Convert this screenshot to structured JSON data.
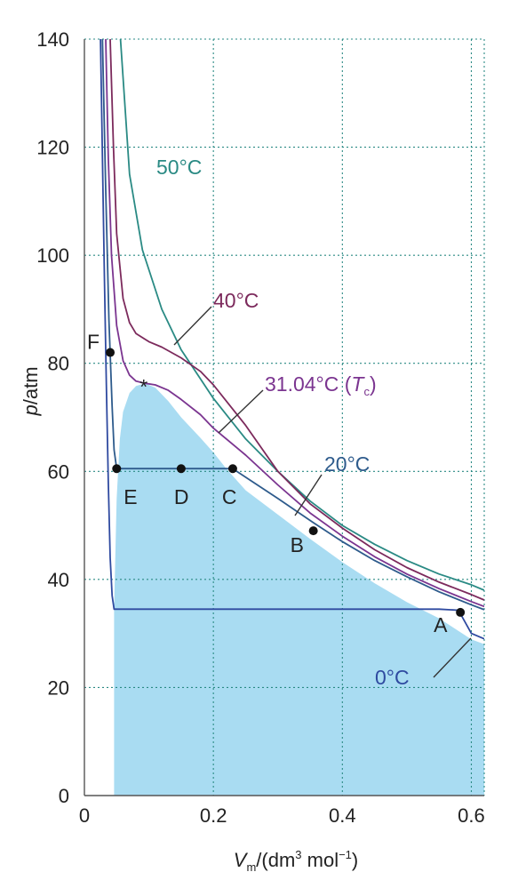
{
  "chart_data": {
    "type": "line",
    "xlabel_main": "V",
    "xlabel_sub": "m",
    "xlabel_units_pre": "/(dm",
    "xlabel_units_sup": "3",
    "xlabel_units_mid": " mol",
    "xlabel_units_sup2": "−1",
    "xlabel_units_post": ")",
    "ylabel_main": "p",
    "ylabel_units": "/atm",
    "xlim": [
      0,
      0.62
    ],
    "ylim": [
      0,
      140
    ],
    "x_ticks": [
      {
        "value": 0,
        "label": "0"
      },
      {
        "value": 0.2,
        "label": "0.2"
      },
      {
        "value": 0.4,
        "label": "0.4"
      },
      {
        "value": 0.6,
        "label": "0.6"
      }
    ],
    "y_ticks": [
      {
        "value": 0,
        "label": "0"
      },
      {
        "value": 20,
        "label": "20"
      },
      {
        "value": 40,
        "label": "40"
      },
      {
        "value": 60,
        "label": "60"
      },
      {
        "value": 80,
        "label": "80"
      },
      {
        "value": 100,
        "label": "100"
      },
      {
        "value": 120,
        "label": "120"
      },
      {
        "value": 140,
        "label": "140"
      }
    ],
    "grid": true,
    "series": [
      {
        "name": "50°C",
        "color": "#2a8a84",
        "x": [
          0.056,
          0.07,
          0.09,
          0.12,
          0.15,
          0.2,
          0.25,
          0.3,
          0.35,
          0.4,
          0.45,
          0.5,
          0.55,
          0.6,
          0.62
        ],
        "y": [
          140,
          115,
          101,
          90,
          82.5,
          73.5,
          66,
          60,
          54.5,
          50,
          46.5,
          43.5,
          41,
          39,
          38
        ]
      },
      {
        "name": "40°C",
        "color": "#7c2a5c",
        "x": [
          0.04,
          0.045,
          0.05,
          0.06,
          0.07,
          0.08,
          0.1,
          0.12,
          0.15,
          0.18,
          0.2,
          0.25,
          0.3,
          0.35,
          0.4,
          0.45,
          0.5,
          0.55,
          0.6,
          0.62
        ],
        "y": [
          140,
          120,
          104,
          92,
          87.5,
          85.5,
          84,
          83,
          81,
          78.5,
          76,
          68.5,
          60,
          54,
          49.5,
          45.5,
          42.2,
          39.5,
          37.2,
          36.2
        ]
      },
      {
        "name": "31.04°C",
        "color": "#7b3590",
        "x": [
          0.033,
          0.037,
          0.042,
          0.05,
          0.06,
          0.07,
          0.08,
          0.094,
          0.11,
          0.13,
          0.15,
          0.18,
          0.2,
          0.25,
          0.3,
          0.35,
          0.4,
          0.45,
          0.5,
          0.55,
          0.6,
          0.62
        ],
        "y": [
          140,
          118,
          100,
          87,
          80.5,
          77.8,
          76.7,
          76.3,
          76,
          75,
          73.3,
          70.5,
          68,
          63,
          57.5,
          52.3,
          48,
          44.2,
          41,
          38.3,
          35.9,
          35
        ]
      },
      {
        "name": "20°C",
        "color": "#2e5b8c",
        "x": [
          0.028,
          0.033,
          0.038,
          0.043,
          0.046,
          0.05,
          0.15,
          0.23,
          0.3,
          0.355,
          0.4,
          0.45,
          0.5,
          0.55,
          0.6,
          0.62
        ],
        "y": [
          140,
          112,
          88,
          72,
          64,
          60.5,
          60.5,
          60.5,
          55,
          50.5,
          47,
          43.5,
          40.5,
          37.7,
          35.3,
          34.4
        ]
      },
      {
        "name": "0°C",
        "color": "#2f4aa0",
        "x": [
          0.025,
          0.028,
          0.031,
          0.034,
          0.037,
          0.04,
          0.043,
          0.046,
          0.5,
          0.55,
          0.58,
          0.6,
          0.62
        ],
        "y": [
          140,
          118,
          96,
          76,
          58,
          44,
          37,
          34.5,
          34.5,
          34.5,
          34.3,
          30,
          29
        ]
      }
    ],
    "shaded_region": {
      "color": "#a9dcf2",
      "x": [
        0.046,
        0.05,
        0.055,
        0.06,
        0.07,
        0.08,
        0.094,
        0.11,
        0.13,
        0.15,
        0.18,
        0.2,
        0.22,
        0.25,
        0.3,
        0.35,
        0.4,
        0.45,
        0.5,
        0.55,
        0.6,
        0.62
      ],
      "y": [
        34.5,
        55,
        66,
        71,
        74.5,
        75.8,
        76.3,
        75.5,
        73,
        70,
        66.2,
        63.5,
        60.5,
        56.5,
        52,
        47.5,
        43.2,
        39.3,
        35.8,
        32.8,
        28.9,
        28
      ]
    },
    "points": [
      {
        "label": "A",
        "x": 0.583,
        "y": 33.9
      },
      {
        "label": "B",
        "x": 0.355,
        "y": 49
      },
      {
        "label": "C",
        "x": 0.23,
        "y": 60.5
      },
      {
        "label": "D",
        "x": 0.15,
        "y": 60.5
      },
      {
        "label": "E",
        "x": 0.05,
        "y": 60.5
      },
      {
        "label": "F",
        "x": 0.04,
        "y": 82
      }
    ],
    "critical_marker": "*",
    "curve_labels": [
      {
        "text": "50°C"
      },
      {
        "text": "40°C"
      },
      {
        "text": "31.04°C (",
        "italic": "T",
        "sub": "c",
        "close": ")"
      },
      {
        "text": "20°C"
      },
      {
        "text": "0°C"
      }
    ]
  }
}
